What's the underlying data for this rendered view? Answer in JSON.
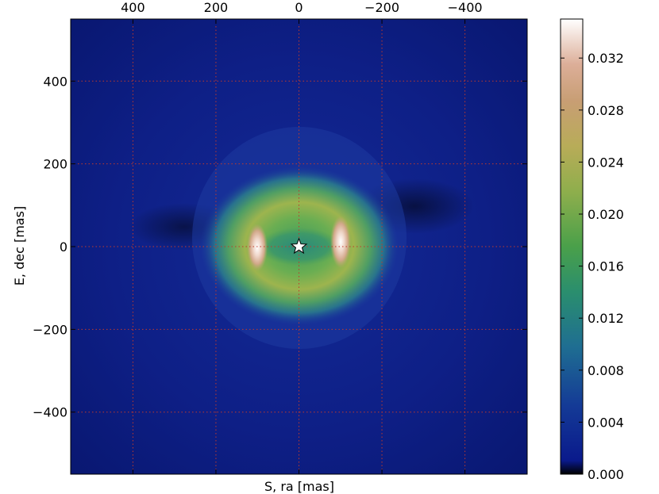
{
  "chart_data": {
    "type": "heatmap",
    "title": "",
    "xlabel": "S, ra [mas]",
    "ylabel": "E, dec [mas]",
    "xlim": [
      550,
      -550
    ],
    "ylim": [
      -550,
      550
    ],
    "x_ticks": [
      400,
      200,
      0,
      -200,
      -400
    ],
    "x_tick_labels": [
      "400",
      "200",
      "0",
      "−200",
      "−400"
    ],
    "y_ticks": [
      400,
      200,
      0,
      -200,
      -400
    ],
    "y_tick_labels": [
      "400",
      "200",
      "0",
      "−200",
      "−400"
    ],
    "x_axis_position": "top",
    "grid": true,
    "grid_color": "#c0392b",
    "grid_style": "dotted",
    "star_marker": {
      "x": 0,
      "y": 0,
      "color": "#ffffff"
    },
    "intensity_features": [
      {
        "name": "ring",
        "x": 0,
        "y": 0,
        "rx": 170,
        "ry": 120,
        "value": 0.018
      },
      {
        "name": "bright-lobe-east",
        "x": 105,
        "y": 0,
        "value": 0.035
      },
      {
        "name": "bright-lobe-west",
        "x": -100,
        "y": 0,
        "value": 0.035
      },
      {
        "name": "central-hole",
        "x": 0,
        "y": 0,
        "value": 0.012
      },
      {
        "name": "background",
        "value": 0.002
      }
    ],
    "colorbar": {
      "range": [
        0.0,
        0.035
      ],
      "ticks": [
        0.0,
        0.004,
        0.008,
        0.012,
        0.016,
        0.02,
        0.024,
        0.028,
        0.032
      ],
      "tick_labels": [
        "0.000",
        "0.004",
        "0.008",
        "0.012",
        "0.016",
        "0.020",
        "0.024",
        "0.028",
        "0.032"
      ],
      "colormap": "gist_earth",
      "colors": [
        "#000000",
        "#0a1a8c",
        "#1a5a99",
        "#2a8e6e",
        "#4aa04a",
        "#a8b04a",
        "#c2a064",
        "#dca98f",
        "#ffffff"
      ]
    }
  }
}
